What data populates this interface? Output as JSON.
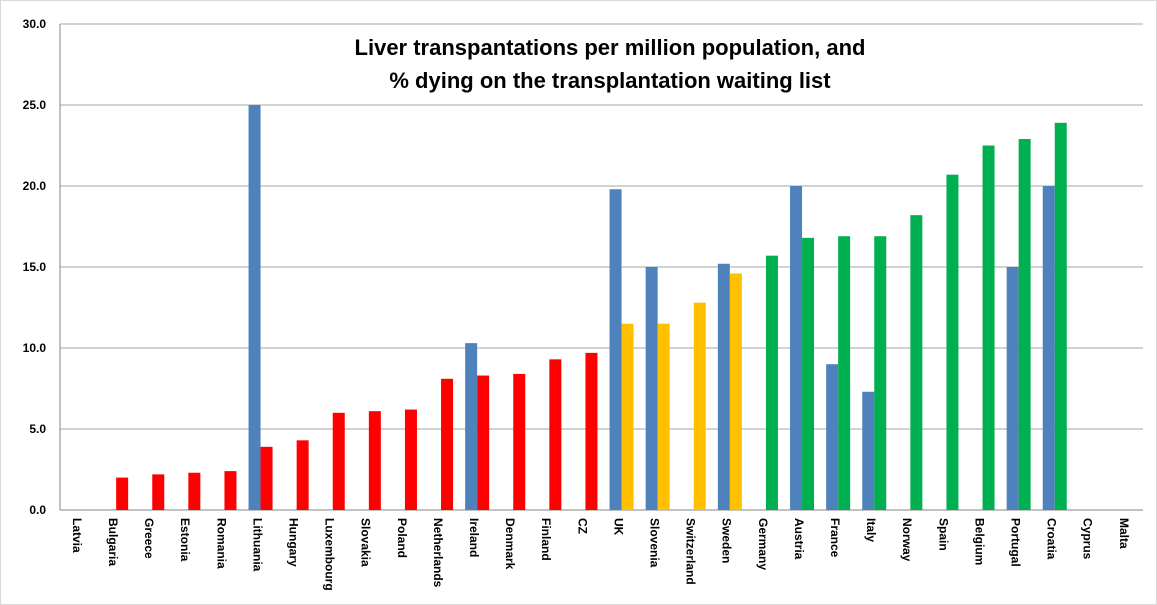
{
  "chart_data": {
    "type": "bar",
    "title": [
      "Liver transpantations per million population, and",
      "% dying on the transplantation waiting list"
    ],
    "categories": [
      "Latvia",
      "Bulgaria",
      "Greece",
      "Estonia",
      "Romania",
      "Lithuania",
      "Hungary",
      "Luxembourg",
      "Slovakia",
      "Poland",
      "Netherlands",
      "Ireland",
      "Denmark",
      "Finland",
      "CZ",
      "UK",
      "Slovenia",
      "Switzerland",
      "Sweden",
      "Germany",
      "Austria",
      "France",
      "Italy",
      "Norway",
      "Spain",
      "Belgium",
      "Portugal",
      "Croatia",
      "Cyprus",
      "Malta"
    ],
    "series": [
      {
        "color": "#4f81bd",
        "values": [
          null,
          null,
          null,
          null,
          null,
          25.0,
          null,
          null,
          null,
          null,
          null,
          10.3,
          null,
          null,
          null,
          19.8,
          15.0,
          null,
          15.2,
          null,
          20.0,
          9.0,
          7.3,
          null,
          null,
          null,
          15.0,
          20.0,
          null,
          null
        ]
      },
      {
        "colors": [
          null,
          "#ff0000",
          "#ff0000",
          "#ff0000",
          "#ff0000",
          "#ff0000",
          "#ff0000",
          "#ff0000",
          "#ff0000",
          "#ff0000",
          "#ff0000",
          "#ff0000",
          "#ff0000",
          "#ff0000",
          "#ff0000",
          "#ffc000",
          "#ffc000",
          "#ffc000",
          "#ffc000",
          "#00b050",
          "#00b050",
          "#00b050",
          "#00b050",
          "#00b050",
          "#00b050",
          "#00b050",
          "#00b050",
          "#00b050",
          null,
          null
        ],
        "values": [
          null,
          2.0,
          2.2,
          2.3,
          2.4,
          3.9,
          4.3,
          6.0,
          6.1,
          6.2,
          8.1,
          8.3,
          8.4,
          9.3,
          9.7,
          11.5,
          11.5,
          12.8,
          14.6,
          15.7,
          16.8,
          16.9,
          16.9,
          18.2,
          20.7,
          22.5,
          22.9,
          23.9,
          null,
          null
        ]
      }
    ],
    "ylim": [
      0,
      30
    ],
    "yticks": [
      {
        "value": 0,
        "label": "0.0"
      },
      {
        "value": 5,
        "label": "5.0"
      },
      {
        "value": 10,
        "label": "10.0"
      },
      {
        "value": 15,
        "label": "15.0"
      },
      {
        "value": 20,
        "label": "20.0"
      },
      {
        "value": 25,
        "label": "25.0"
      },
      {
        "value": 30,
        "label": "30.0"
      }
    ],
    "grid": true
  }
}
